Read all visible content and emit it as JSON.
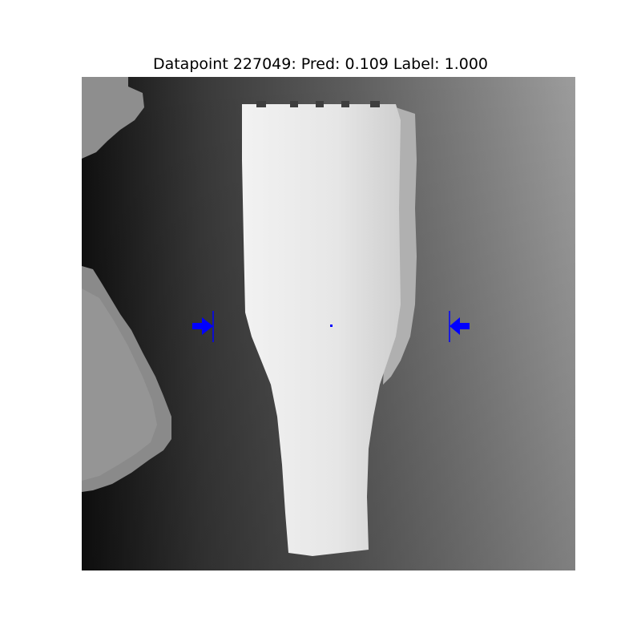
{
  "figure": {
    "title": "Datapoint 227049: Pred: 0.109 Label: 1.000"
  },
  "image": {
    "description_icon": "depth-image-icon",
    "gripper_color": "#0000ff"
  }
}
